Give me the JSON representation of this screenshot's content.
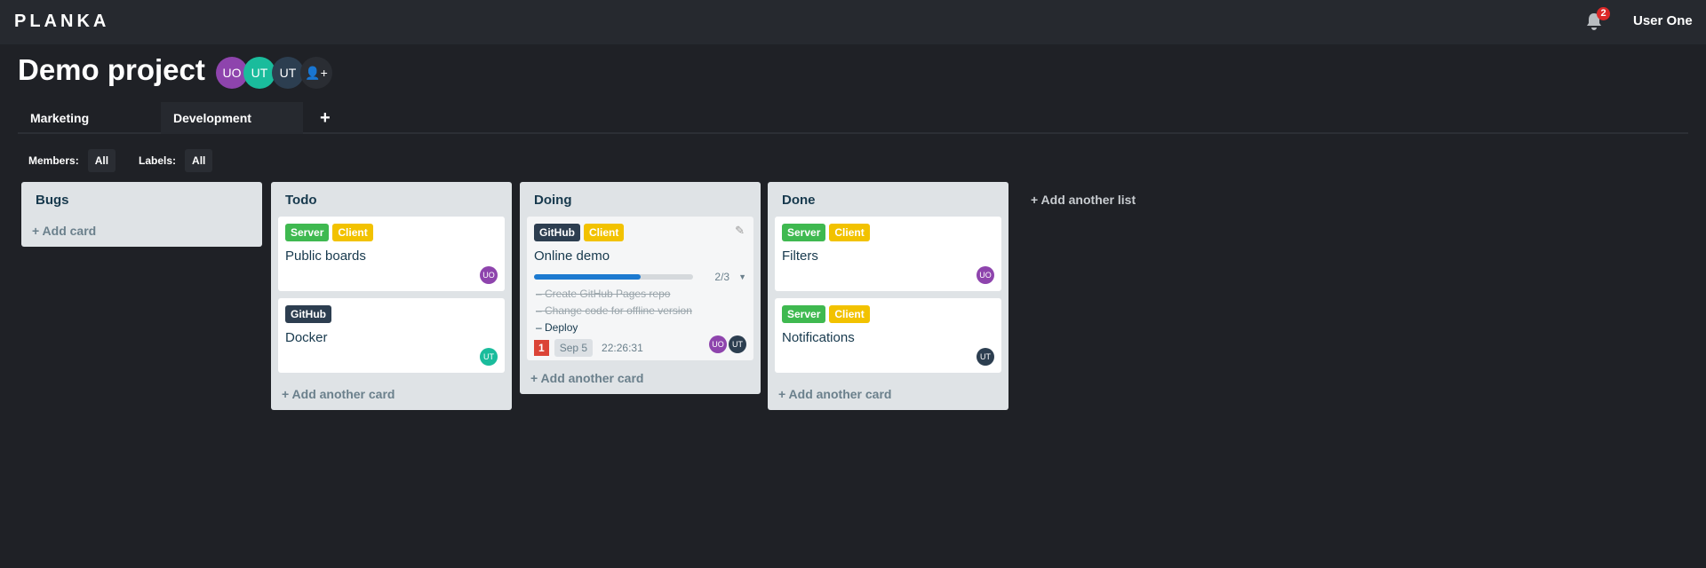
{
  "header": {
    "logo": "PLANKA",
    "notifications": "2",
    "user": "User One"
  },
  "project": {
    "title": "Demo project",
    "members": [
      {
        "initials": "UO",
        "color": "#8e44ad"
      },
      {
        "initials": "UT",
        "color": "#1abc9c"
      },
      {
        "initials": "UT",
        "color": "#2c3e50"
      }
    ]
  },
  "tabs": [
    "Marketing",
    "Development"
  ],
  "filters": {
    "members_label": "Members:",
    "members_value": "All",
    "labels_label": "Labels:",
    "labels_value": "All"
  },
  "colors": {
    "Server": "#3fb950",
    "Client": "#f2c200",
    "GitHub": "#2d3e50",
    "UO": "#8e44ad",
    "UT_green": "#1abc9c",
    "UT_dark": "#2c3e50"
  },
  "lists": [
    {
      "title": "Bugs",
      "add": "Add card"
    },
    {
      "title": "Todo",
      "add": "Add another card",
      "cards": [
        {
          "labels": [
            "Server",
            "Client"
          ],
          "title": "Public boards",
          "member": "UO"
        },
        {
          "labels": [
            "GitHub"
          ],
          "title": "Docker",
          "member": "UT"
        }
      ]
    },
    {
      "title": "Doing",
      "add": "Add another card",
      "cards": [
        {
          "labels": [
            "GitHub",
            "Client"
          ],
          "title": "Online demo",
          "progress": 0.667,
          "progress_text": "2/3",
          "tasks": [
            {
              "text": "Create GitHub Pages repo",
              "done": true
            },
            {
              "text": "Change code for offline version",
              "done": true
            },
            {
              "text": "Deploy",
              "done": false
            }
          ],
          "comments": "1",
          "due": "Sep 5",
          "timer": "22:26:31",
          "members": [
            "UO",
            "UT"
          ]
        }
      ]
    },
    {
      "title": "Done",
      "add": "Add another card",
      "cards": [
        {
          "labels": [
            "Server",
            "Client"
          ],
          "title": "Filters",
          "member": "UO"
        },
        {
          "labels": [
            "Server",
            "Client"
          ],
          "title": "Notifications",
          "member": "UT"
        }
      ]
    }
  ],
  "add_list": "Add another list"
}
